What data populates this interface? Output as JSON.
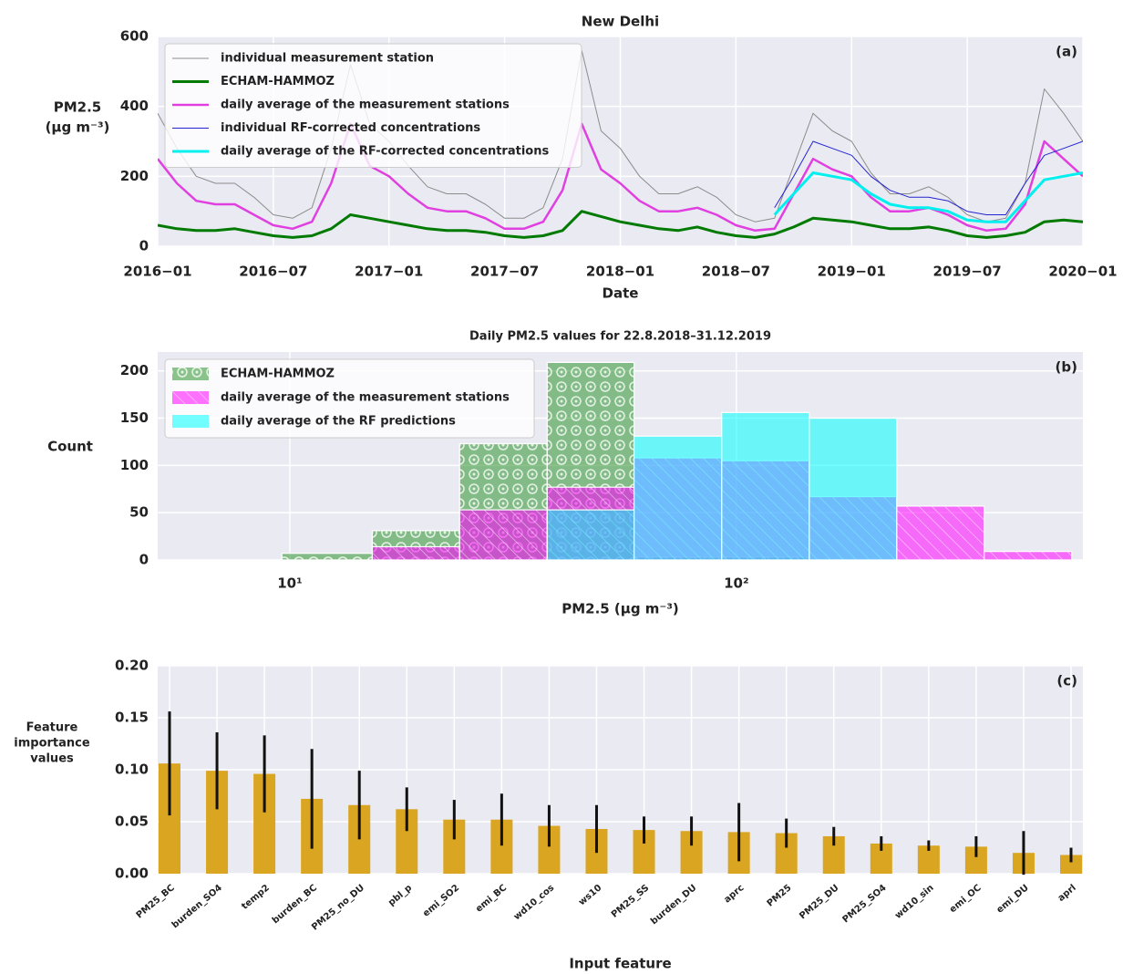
{
  "chart_data": [
    {
      "type": "line",
      "title": "New Delhi",
      "xlabel": "Date",
      "ylabel": [
        "PM2.5",
        "(μg m⁻³)"
      ],
      "annotation": "(a)",
      "grid": true,
      "legend": "upper left",
      "x": [
        "2016-01",
        "2016-02",
        "2016-03",
        "2016-04",
        "2016-05",
        "2016-06",
        "2016-07",
        "2016-08",
        "2016-09",
        "2016-10",
        "2016-11",
        "2016-12",
        "2017-01",
        "2017-02",
        "2017-03",
        "2017-04",
        "2017-05",
        "2017-06",
        "2017-07",
        "2017-08",
        "2017-09",
        "2017-10",
        "2017-11",
        "2017-12",
        "2018-01",
        "2018-02",
        "2018-03",
        "2018-04",
        "2018-05",
        "2018-06",
        "2018-07",
        "2018-08",
        "2018-09",
        "2018-10",
        "2018-11",
        "2018-12",
        "2019-01",
        "2019-02",
        "2019-03",
        "2019-04",
        "2019-05",
        "2019-06",
        "2019-07",
        "2019-08",
        "2019-09",
        "2019-10",
        "2019-11",
        "2019-12",
        "2020-01"
      ],
      "xlim": [
        "2016-01",
        "2020-01"
      ],
      "xticks": [
        {
          "value": "2016-01",
          "label": "2016−01"
        },
        {
          "value": "2016-07",
          "label": "2016−07"
        },
        {
          "value": "2017-01",
          "label": "2017−01"
        },
        {
          "value": "2017-07",
          "label": "2017−07"
        },
        {
          "value": "2018-01",
          "label": "2018−01"
        },
        {
          "value": "2018-07",
          "label": "2018−07"
        },
        {
          "value": "2019-01",
          "label": "2019−01"
        },
        {
          "value": "2019-07",
          "label": "2019−07"
        },
        {
          "value": "2020-01",
          "label": "2020−01"
        }
      ],
      "ylim": [
        0,
        600
      ],
      "yticks": [
        0,
        200,
        400,
        600
      ],
      "series": [
        {
          "name": "individual measurement station",
          "color": "#8c8c8c",
          "width": 1,
          "values": [
            380,
            280,
            200,
            180,
            180,
            140,
            90,
            80,
            110,
            280,
            520,
            350,
            300,
            230,
            170,
            150,
            150,
            120,
            80,
            80,
            110,
            250,
            560,
            330,
            280,
            200,
            150,
            150,
            170,
            140,
            90,
            70,
            80,
            230,
            380,
            330,
            300,
            210,
            150,
            150,
            170,
            140,
            90,
            70,
            80,
            180,
            450,
            380,
            300
          ]
        },
        {
          "name": "ECHAM-HAMMOZ",
          "color": "#007a00",
          "width": 3,
          "values": [
            60,
            50,
            45,
            45,
            50,
            40,
            30,
            25,
            30,
            50,
            90,
            80,
            70,
            60,
            50,
            45,
            45,
            40,
            30,
            25,
            30,
            45,
            100,
            85,
            70,
            60,
            50,
            45,
            55,
            40,
            30,
            25,
            35,
            55,
            80,
            75,
            70,
            60,
            50,
            50,
            55,
            45,
            30,
            25,
            30,
            40,
            70,
            75,
            70
          ]
        },
        {
          "name": "daily average of the measurement stations",
          "color": "#e040e0",
          "width": 2.5,
          "values": [
            250,
            180,
            130,
            120,
            120,
            90,
            60,
            50,
            70,
            180,
            350,
            230,
            200,
            150,
            110,
            100,
            100,
            80,
            50,
            50,
            70,
            160,
            350,
            220,
            180,
            130,
            100,
            100,
            110,
            90,
            60,
            45,
            50,
            150,
            250,
            220,
            200,
            140,
            100,
            100,
            110,
            90,
            60,
            45,
            50,
            120,
            300,
            250,
            200
          ]
        },
        {
          "name": "individual RF-corrected concentrations",
          "color": "#2424d0",
          "width": 1,
          "values": [
            null,
            null,
            null,
            null,
            null,
            null,
            null,
            null,
            null,
            null,
            null,
            null,
            null,
            null,
            null,
            null,
            null,
            null,
            null,
            null,
            null,
            null,
            null,
            null,
            null,
            null,
            null,
            null,
            null,
            null,
            null,
            null,
            110,
            200,
            300,
            280,
            260,
            200,
            160,
            140,
            140,
            130,
            100,
            90,
            90,
            180,
            260,
            280,
            300
          ]
        },
        {
          "name": "daily average of the RF-corrected concentrations",
          "color": "#00f0f0",
          "width": 3,
          "values": [
            null,
            null,
            null,
            null,
            null,
            null,
            null,
            null,
            null,
            null,
            null,
            null,
            null,
            null,
            null,
            null,
            null,
            null,
            null,
            null,
            null,
            null,
            null,
            null,
            null,
            null,
            null,
            null,
            null,
            null,
            null,
            null,
            90,
            150,
            210,
            200,
            190,
            150,
            120,
            110,
            110,
            100,
            75,
            70,
            70,
            130,
            190,
            200,
            210
          ]
        }
      ]
    },
    {
      "type": "histogram",
      "title": "Daily PM2.5 values for 22.8.2018–31.12.2019",
      "xlabel": "PM2.5 (μg m⁻³)",
      "ylabel": "Count",
      "annotation": "(b)",
      "grid": true,
      "log_x": true,
      "legend": "upper left",
      "bins": [
        9.6,
        15.3,
        24,
        37.7,
        59,
        92.7,
        145.6,
        228.6,
        358.8,
        563.6
      ],
      "xlim": [
        5.06,
        597
      ],
      "xticks": [
        {
          "value": 10,
          "label": "10¹"
        },
        {
          "value": 100,
          "label": "10²"
        }
      ],
      "ylim": [
        0,
        220
      ],
      "yticks": [
        0,
        50,
        100,
        150,
        200
      ],
      "series": [
        {
          "name": "ECHAM-HAMMOZ",
          "color": "#2e932e",
          "hatch": "circles",
          "values": [
            7,
            31,
            123,
            209,
            3,
            3,
            0,
            0,
            0
          ]
        },
        {
          "name": "daily average of the measurement stations",
          "color": "#ff00ff",
          "hatch": "diagonal",
          "values": [
            0,
            14,
            53,
            77,
            108,
            105,
            67,
            57,
            9
          ]
        },
        {
          "name": "daily average of the RF predictions",
          "color": "#00ffff",
          "hatch": null,
          "values": [
            0,
            0,
            0,
            53,
            131,
            156,
            150,
            0,
            0
          ]
        }
      ]
    },
    {
      "type": "bar",
      "xlabel": "Input feature",
      "ylabel": [
        "Feature",
        "importance",
        "values"
      ],
      "annotation": "(c)",
      "grid": true,
      "color": "#daa520",
      "error_color": "#111111",
      "categories": [
        "PM25_BC",
        "burden_SO4",
        "temp2",
        "burden_BC",
        "PM25_no_DU",
        "pbl_p",
        "emi_SO2",
        "emi_BC",
        "wd10_cos",
        "ws10",
        "PM25_SS",
        "burden_DU",
        "aprc",
        "PM25",
        "PM25_DU",
        "PM25_SO4",
        "wd10_sin",
        "emi_OC",
        "emi_DU",
        "aprl"
      ],
      "values": [
        0.106,
        0.099,
        0.096,
        0.072,
        0.066,
        0.062,
        0.052,
        0.052,
        0.046,
        0.043,
        0.042,
        0.041,
        0.04,
        0.039,
        0.036,
        0.029,
        0.027,
        0.026,
        0.02,
        0.018
      ],
      "errors": [
        0.05,
        0.037,
        0.037,
        0.048,
        0.033,
        0.021,
        0.019,
        0.025,
        0.02,
        0.023,
        0.013,
        0.014,
        0.028,
        0.014,
        0.009,
        0.007,
        0.005,
        0.01,
        0.021,
        0.007
      ],
      "ylim": [
        0,
        0.2
      ],
      "yticks": [
        {
          "value": 0,
          "label": "0.00"
        },
        {
          "value": 0.05,
          "label": "0.05"
        },
        {
          "value": 0.1,
          "label": "0.10"
        },
        {
          "value": 0.15,
          "label": "0.15"
        },
        {
          "value": 0.2,
          "label": "0.20"
        }
      ]
    }
  ]
}
